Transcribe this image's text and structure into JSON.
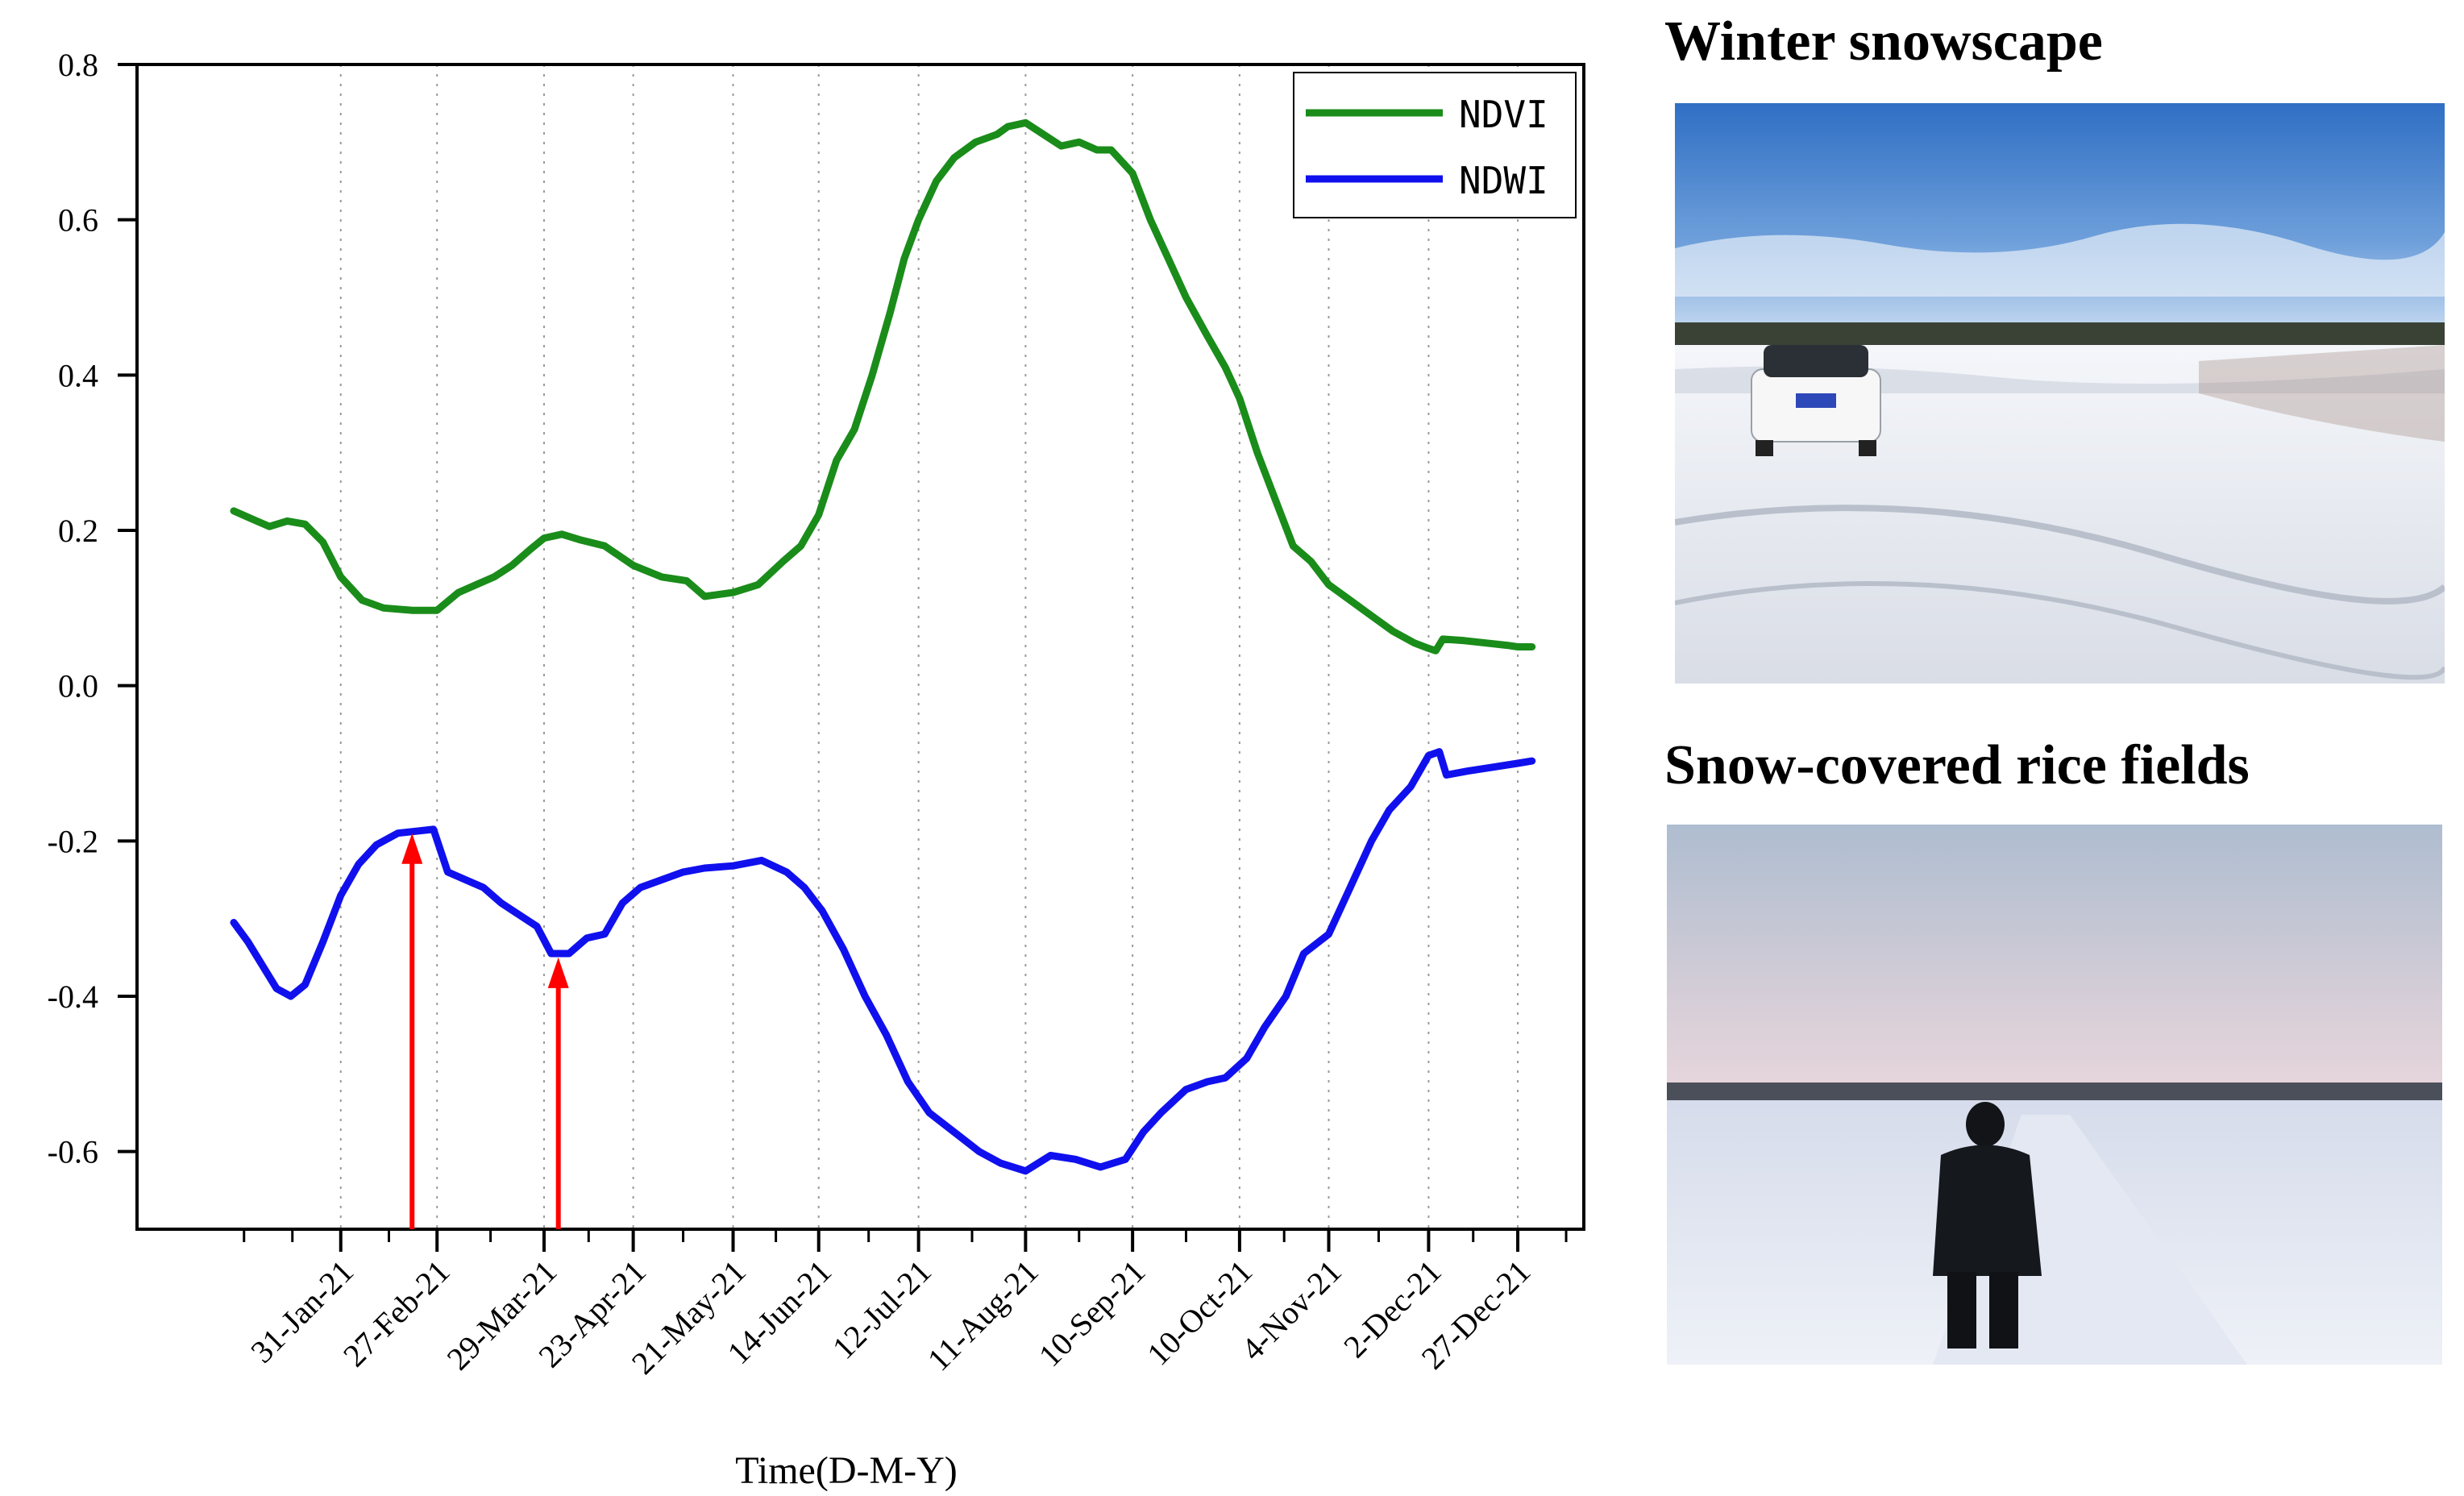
{
  "chart_data": {
    "type": "line",
    "title": "",
    "xlabel": "Time(D-M-Y)",
    "ylabel": "",
    "ylim": [
      -0.7,
      0.8
    ],
    "xlim": [
      "2021-01-01",
      "2022-01-10"
    ],
    "yticks": [
      0.8,
      0.6,
      0.4,
      0.2,
      0.0,
      -0.2,
      -0.4,
      -0.6
    ],
    "ytick_labels": [
      "0.8",
      "0.6",
      "0.4",
      "0.2",
      "0.0",
      "-0.2",
      "-0.4",
      "-0.6"
    ],
    "xticks": [
      "2021-01-31",
      "2021-02-27",
      "2021-03-29",
      "2021-04-23",
      "2021-05-21",
      "2021-06-14",
      "2021-07-12",
      "2021-08-11",
      "2021-09-10",
      "2021-10-10",
      "2021-11-04",
      "2021-12-02",
      "2021-12-27"
    ],
    "xtick_labels": [
      "31-Jan-21",
      "27-Feb-21",
      "29-Mar-21",
      "23-Apr-21",
      "21-May-21",
      "14-Jun-21",
      "12-Jul-21",
      "11-Aug-21",
      "10-Sep-21",
      "10-Oct-21",
      "4-Nov-21",
      "2-Dec-21",
      "27-Dec-21"
    ],
    "grid": "vertical dotted",
    "legend_position": "top-right",
    "series": [
      {
        "name": "NDVI",
        "color": "#1a8c1a",
        "points": [
          [
            "2021-01-01",
            0.225
          ],
          [
            "2021-01-06",
            0.215
          ],
          [
            "2021-01-11",
            0.205
          ],
          [
            "2021-01-16",
            0.212
          ],
          [
            "2021-01-21",
            0.208
          ],
          [
            "2021-01-26",
            0.185
          ],
          [
            "2021-01-31",
            0.14
          ],
          [
            "2021-02-06",
            0.11
          ],
          [
            "2021-02-12",
            0.1
          ],
          [
            "2021-02-20",
            0.097
          ],
          [
            "2021-02-27",
            0.097
          ],
          [
            "2021-03-05",
            0.12
          ],
          [
            "2021-03-10",
            0.13
          ],
          [
            "2021-03-15",
            0.14
          ],
          [
            "2021-03-20",
            0.155
          ],
          [
            "2021-03-25",
            0.175
          ],
          [
            "2021-03-29",
            0.19
          ],
          [
            "2021-04-03",
            0.195
          ],
          [
            "2021-04-08",
            0.188
          ],
          [
            "2021-04-15",
            0.18
          ],
          [
            "2021-04-23",
            0.155
          ],
          [
            "2021-05-01",
            0.14
          ],
          [
            "2021-05-08",
            0.135
          ],
          [
            "2021-05-13",
            0.115
          ],
          [
            "2021-05-21",
            0.12
          ],
          [
            "2021-05-28",
            0.13
          ],
          [
            "2021-06-04",
            0.16
          ],
          [
            "2021-06-09",
            0.18
          ],
          [
            "2021-06-14",
            0.22
          ],
          [
            "2021-06-19",
            0.29
          ],
          [
            "2021-06-24",
            0.33
          ],
          [
            "2021-06-29",
            0.4
          ],
          [
            "2021-07-04",
            0.48
          ],
          [
            "2021-07-08",
            0.55
          ],
          [
            "2021-07-12",
            0.6
          ],
          [
            "2021-07-17",
            0.65
          ],
          [
            "2021-07-22",
            0.68
          ],
          [
            "2021-07-28",
            0.7
          ],
          [
            "2021-08-03",
            0.71
          ],
          [
            "2021-08-06",
            0.72
          ],
          [
            "2021-08-11",
            0.725
          ],
          [
            "2021-08-16",
            0.71
          ],
          [
            "2021-08-21",
            0.695
          ],
          [
            "2021-08-26",
            0.7
          ],
          [
            "2021-08-31",
            0.69
          ],
          [
            "2021-09-04",
            0.69
          ],
          [
            "2021-09-10",
            0.66
          ],
          [
            "2021-09-15",
            0.6
          ],
          [
            "2021-09-20",
            0.55
          ],
          [
            "2021-09-25",
            0.5
          ],
          [
            "2021-10-01",
            0.45
          ],
          [
            "2021-10-06",
            0.41
          ],
          [
            "2021-10-10",
            0.37
          ],
          [
            "2021-10-15",
            0.3
          ],
          [
            "2021-10-20",
            0.24
          ],
          [
            "2021-10-25",
            0.18
          ],
          [
            "2021-10-30",
            0.16
          ],
          [
            "2021-11-04",
            0.13
          ],
          [
            "2021-11-10",
            0.11
          ],
          [
            "2021-11-16",
            0.09
          ],
          [
            "2021-11-22",
            0.07
          ],
          [
            "2021-11-28",
            0.055
          ],
          [
            "2021-12-02",
            0.048
          ],
          [
            "2021-12-04",
            0.045
          ],
          [
            "2021-12-06",
            0.06
          ],
          [
            "2021-12-12",
            0.058
          ],
          [
            "2021-12-18",
            0.055
          ],
          [
            "2021-12-24",
            0.052
          ],
          [
            "2021-12-27",
            0.05
          ],
          [
            "2021-12-31",
            0.05
          ]
        ]
      },
      {
        "name": "NDWI",
        "color": "#1010ee",
        "points": [
          [
            "2021-01-01",
            -0.305
          ],
          [
            "2021-01-05",
            -0.33
          ],
          [
            "2021-01-09",
            -0.36
          ],
          [
            "2021-01-13",
            -0.39
          ],
          [
            "2021-01-17",
            -0.4
          ],
          [
            "2021-01-21",
            -0.385
          ],
          [
            "2021-01-26",
            -0.33
          ],
          [
            "2021-01-31",
            -0.27
          ],
          [
            "2021-02-05",
            -0.23
          ],
          [
            "2021-02-10",
            -0.205
          ],
          [
            "2021-02-16",
            -0.19
          ],
          [
            "2021-02-22",
            -0.187
          ],
          [
            "2021-02-26",
            -0.185
          ],
          [
            "2021-03-02",
            -0.24
          ],
          [
            "2021-03-07",
            -0.25
          ],
          [
            "2021-03-12",
            -0.26
          ],
          [
            "2021-03-17",
            -0.28
          ],
          [
            "2021-03-22",
            -0.295
          ],
          [
            "2021-03-27",
            -0.31
          ],
          [
            "2021-03-31",
            -0.345
          ],
          [
            "2021-04-05",
            -0.345
          ],
          [
            "2021-04-10",
            -0.325
          ],
          [
            "2021-04-15",
            -0.32
          ],
          [
            "2021-04-20",
            -0.28
          ],
          [
            "2021-04-25",
            -0.26
          ],
          [
            "2021-05-01",
            -0.25
          ],
          [
            "2021-05-07",
            -0.24
          ],
          [
            "2021-05-13",
            -0.235
          ],
          [
            "2021-05-21",
            -0.232
          ],
          [
            "2021-05-29",
            -0.225
          ],
          [
            "2021-06-05",
            -0.24
          ],
          [
            "2021-06-10",
            -0.26
          ],
          [
            "2021-06-15",
            -0.29
          ],
          [
            "2021-06-21",
            -0.34
          ],
          [
            "2021-06-27",
            -0.4
          ],
          [
            "2021-07-03",
            -0.45
          ],
          [
            "2021-07-09",
            -0.51
          ],
          [
            "2021-07-15",
            -0.55
          ],
          [
            "2021-07-22",
            -0.575
          ],
          [
            "2021-07-29",
            -0.6
          ],
          [
            "2021-08-04",
            -0.615
          ],
          [
            "2021-08-11",
            -0.625
          ],
          [
            "2021-08-18",
            -0.605
          ],
          [
            "2021-08-25",
            -0.61
          ],
          [
            "2021-09-01",
            -0.62
          ],
          [
            "2021-09-08",
            -0.61
          ],
          [
            "2021-09-13",
            -0.575
          ],
          [
            "2021-09-18",
            -0.55
          ],
          [
            "2021-09-25",
            -0.52
          ],
          [
            "2021-10-01",
            -0.51
          ],
          [
            "2021-10-06",
            -0.505
          ],
          [
            "2021-10-12",
            -0.48
          ],
          [
            "2021-10-17",
            -0.44
          ],
          [
            "2021-10-23",
            -0.4
          ],
          [
            "2021-10-28",
            -0.345
          ],
          [
            "2021-11-04",
            -0.32
          ],
          [
            "2021-11-10",
            -0.26
          ],
          [
            "2021-11-16",
            -0.2
          ],
          [
            "2021-11-21",
            -0.16
          ],
          [
            "2021-11-27",
            -0.13
          ],
          [
            "2021-12-02",
            -0.09
          ],
          [
            "2021-12-05",
            -0.085
          ],
          [
            "2021-12-07",
            -0.115
          ],
          [
            "2021-12-13",
            -0.11
          ],
          [
            "2021-12-20",
            -0.105
          ],
          [
            "2021-12-27",
            -0.1
          ],
          [
            "2021-12-31",
            -0.097
          ]
        ]
      }
    ],
    "arrows": [
      {
        "x": "2021-02-20",
        "from_y": -0.7,
        "to_y": -0.19,
        "color": "#ff0000"
      },
      {
        "x": "2021-04-02",
        "from_y": -0.7,
        "to_y": -0.35,
        "color": "#ff0000"
      }
    ]
  },
  "photos": [
    {
      "title": "Winter snowscape"
    },
    {
      "title": "Snow-covered rice fields"
    }
  ]
}
